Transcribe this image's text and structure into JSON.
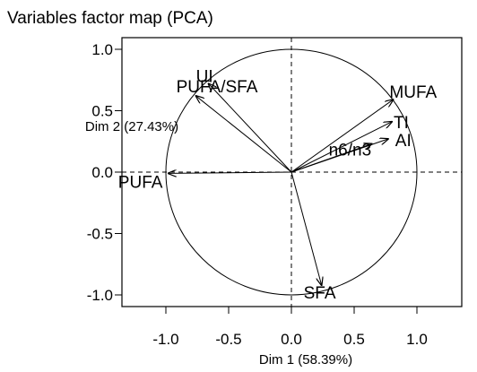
{
  "chart_data": {
    "type": "scatter",
    "title": "Variables factor map (PCA)",
    "xlabel": "Dim 1 (58.39%)",
    "ylabel": "Dim 2 (27.43%)",
    "xlim": [
      -1.3,
      1.3
    ],
    "ylim": [
      -1.05,
      1.05
    ],
    "xticks": [
      "-1.0",
      "-0.5",
      "0.0",
      "0.5",
      "1.0"
    ],
    "yticks": [
      "1.0",
      "0.5",
      "0.0",
      "-0.5",
      "-1.0"
    ],
    "grid": false,
    "unit_circle": true,
    "reference_lines": "dashed at x=0 and y=0",
    "variables": [
      {
        "name": "UI",
        "x": -0.66,
        "y": 0.72
      },
      {
        "name": "PUFA/SFA",
        "x": -0.76,
        "y": 0.62
      },
      {
        "name": "MUFA",
        "x": 0.81,
        "y": 0.59
      },
      {
        "name": "TI",
        "x": 0.8,
        "y": 0.41
      },
      {
        "name": "AI",
        "x": 0.77,
        "y": 0.27
      },
      {
        "name": "n6/n3",
        "x": 0.64,
        "y": 0.23
      },
      {
        "name": "PUFA",
        "x": -0.98,
        "y": -0.01
      },
      {
        "name": "SFA",
        "x": 0.24,
        "y": -0.92
      }
    ]
  }
}
